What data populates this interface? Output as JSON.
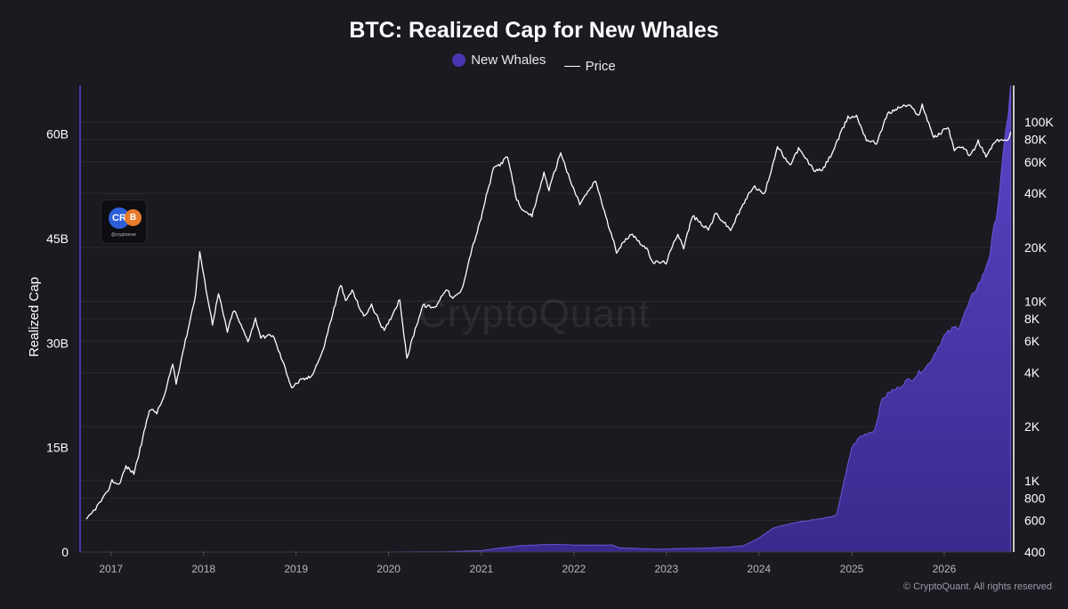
{
  "chart_data": {
    "type": "area",
    "title": "BTC: Realized Cap for New Whales",
    "ylabel": "Realized Cap",
    "y2label": "",
    "xlim": [
      "2016-09-01",
      "2026-09-25"
    ],
    "ylim": [
      0,
      67000000000
    ],
    "y2lim": [
      400,
      160000
    ],
    "y2scale": "log",
    "grid": "horizontal",
    "legend_placement": "top-center",
    "x_ticks": [
      "2017",
      "2018",
      "2019",
      "2020",
      "2021",
      "2022",
      "2023",
      "2024",
      "2025",
      "2026"
    ],
    "y_ticks": [
      {
        "value": 0,
        "label": "0"
      },
      {
        "value": 15000000000,
        "label": "15B"
      },
      {
        "value": 30000000000,
        "label": "30B"
      },
      {
        "value": 45000000000,
        "label": "45B"
      },
      {
        "value": 60000000000,
        "label": "60B"
      }
    ],
    "y2_ticks": [
      {
        "value": 400,
        "label": "400"
      },
      {
        "value": 600,
        "label": "600"
      },
      {
        "value": 800,
        "label": "800"
      },
      {
        "value": 1000,
        "label": "1K"
      },
      {
        "value": 2000,
        "label": "2K"
      },
      {
        "value": 4000,
        "label": "4K"
      },
      {
        "value": 6000,
        "label": "6K"
      },
      {
        "value": 8000,
        "label": "8K"
      },
      {
        "value": 10000,
        "label": "10K"
      },
      {
        "value": 20000,
        "label": "20K"
      },
      {
        "value": 40000,
        "label": "40K"
      },
      {
        "value": 60000,
        "label": "60K"
      },
      {
        "value": 80000,
        "label": "80K"
      },
      {
        "value": 100000,
        "label": "100K"
      }
    ],
    "series": [
      {
        "name": "New Whales",
        "axis": "left",
        "color": "#4a35b0",
        "points": [
          [
            "2016-09-25",
            0
          ],
          [
            "2018-01-01",
            0
          ],
          [
            "2019-01-01",
            0
          ],
          [
            "2020-01-01",
            0
          ],
          [
            "2020-09-01",
            50000000
          ],
          [
            "2021-01-01",
            200000000
          ],
          [
            "2021-03-01",
            500000000
          ],
          [
            "2021-06-01",
            900000000
          ],
          [
            "2021-10-01",
            1100000000
          ],
          [
            "2022-01-01",
            1000000000
          ],
          [
            "2022-04-01",
            1000000000
          ],
          [
            "2022-06-01",
            1000000000
          ],
          [
            "2022-07-01",
            600000000
          ],
          [
            "2022-12-01",
            400000000
          ],
          [
            "2023-03-01",
            500000000
          ],
          [
            "2023-06-01",
            550000000
          ],
          [
            "2023-09-01",
            700000000
          ],
          [
            "2023-11-01",
            900000000
          ],
          [
            "2024-01-01",
            2000000000
          ],
          [
            "2024-03-01",
            3500000000
          ],
          [
            "2024-06-01",
            4300000000
          ],
          [
            "2024-09-01",
            4800000000
          ],
          [
            "2024-11-01",
            5200000000
          ],
          [
            "2024-12-01",
            10000000000
          ],
          [
            "2025-01-01",
            15000000000
          ],
          [
            "2025-02-01",
            16500000000
          ],
          [
            "2025-03-01",
            17000000000
          ],
          [
            "2025-04-01",
            17500000000
          ],
          [
            "2025-05-01",
            22000000000
          ],
          [
            "2025-06-01",
            23000000000
          ],
          [
            "2025-07-01",
            23500000000
          ],
          [
            "2025-08-01",
            24500000000
          ],
          [
            "2025-09-01",
            25000000000
          ],
          [
            "2025-10-01",
            26000000000
          ],
          [
            "2025-11-01",
            27000000000
          ],
          [
            "2025-12-01",
            29000000000
          ],
          [
            "2026-01-01",
            31000000000
          ],
          [
            "2026-02-01",
            32000000000
          ],
          [
            "2026-03-01",
            32500000000
          ],
          [
            "2026-04-01",
            35000000000
          ],
          [
            "2026-05-01",
            37500000000
          ],
          [
            "2026-06-01",
            39500000000
          ],
          [
            "2026-07-01",
            43000000000
          ],
          [
            "2026-08-01",
            50000000000
          ],
          [
            "2026-08-25",
            58000000000
          ],
          [
            "2026-09-10",
            63000000000
          ],
          [
            "2026-09-20",
            67000000000
          ]
        ]
      },
      {
        "name": "Price",
        "axis": "right",
        "color": "#ffffff",
        "points": [
          [
            "2016-09-25",
            600
          ],
          [
            "2016-11-01",
            700
          ],
          [
            "2016-12-15",
            850
          ],
          [
            "2017-01-05",
            1000
          ],
          [
            "2017-02-01",
            950
          ],
          [
            "2017-03-01",
            1200
          ],
          [
            "2017-04-01",
            1100
          ],
          [
            "2017-05-01",
            1600
          ],
          [
            "2017-06-01",
            2500
          ],
          [
            "2017-07-01",
            2400
          ],
          [
            "2017-08-01",
            3000
          ],
          [
            "2017-09-01",
            4500
          ],
          [
            "2017-09-15",
            3500
          ],
          [
            "2017-10-01",
            4500
          ],
          [
            "2017-11-01",
            7000
          ],
          [
            "2017-12-01",
            11000
          ],
          [
            "2017-12-17",
            19000
          ],
          [
            "2018-01-01",
            14000
          ],
          [
            "2018-02-05",
            7500
          ],
          [
            "2018-03-01",
            11000
          ],
          [
            "2018-04-05",
            6800
          ],
          [
            "2018-05-01",
            9000
          ],
          [
            "2018-06-25",
            6000
          ],
          [
            "2018-07-25",
            8000
          ],
          [
            "2018-08-15",
            6300
          ],
          [
            "2018-10-01",
            6500
          ],
          [
            "2018-11-20",
            4200
          ],
          [
            "2018-12-15",
            3300
          ],
          [
            "2019-01-15",
            3600
          ],
          [
            "2019-03-01",
            3800
          ],
          [
            "2019-04-15",
            5200
          ],
          [
            "2019-05-20",
            8000
          ],
          [
            "2019-06-26",
            12500
          ],
          [
            "2019-07-15",
            10000
          ],
          [
            "2019-08-10",
            11500
          ],
          [
            "2019-09-25",
            8200
          ],
          [
            "2019-10-26",
            9500
          ],
          [
            "2019-12-15",
            6800
          ],
          [
            "2020-02-14",
            10300
          ],
          [
            "2020-03-13",
            4800
          ],
          [
            "2020-04-15",
            7000
          ],
          [
            "2020-05-15",
            9500
          ],
          [
            "2020-07-01",
            9200
          ],
          [
            "2020-08-15",
            11800
          ],
          [
            "2020-09-10",
            10300
          ],
          [
            "2020-10-15",
            11500
          ],
          [
            "2020-11-20",
            18500
          ],
          [
            "2020-12-31",
            29000
          ],
          [
            "2021-01-15",
            36000
          ],
          [
            "2021-02-20",
            56000
          ],
          [
            "2021-03-15",
            58000
          ],
          [
            "2021-04-14",
            64000
          ],
          [
            "2021-05-20",
            37000
          ],
          [
            "2021-06-22",
            31000
          ],
          [
            "2021-07-20",
            30000
          ],
          [
            "2021-09-05",
            52000
          ],
          [
            "2021-09-25",
            42000
          ],
          [
            "2021-11-10",
            68000
          ],
          [
            "2021-12-15",
            48000
          ],
          [
            "2022-01-24",
            35000
          ],
          [
            "2022-03-28",
            47000
          ],
          [
            "2022-05-12",
            28000
          ],
          [
            "2022-06-18",
            19000
          ],
          [
            "2022-08-15",
            24000
          ],
          [
            "2022-10-15",
            19500
          ],
          [
            "2022-11-10",
            16500
          ],
          [
            "2022-12-31",
            16500
          ],
          [
            "2023-02-15",
            24000
          ],
          [
            "2023-03-10",
            20000
          ],
          [
            "2023-04-14",
            30000
          ],
          [
            "2023-06-15",
            25000
          ],
          [
            "2023-07-15",
            31000
          ],
          [
            "2023-09-11",
            25000
          ],
          [
            "2023-10-30",
            34500
          ],
          [
            "2023-12-10",
            44000
          ],
          [
            "2024-01-23",
            39500
          ],
          [
            "2024-03-14",
            73000
          ],
          [
            "2024-05-01",
            57000
          ],
          [
            "2024-06-05",
            71000
          ],
          [
            "2024-08-05",
            54000
          ],
          [
            "2024-09-06",
            53500
          ],
          [
            "2024-10-15",
            67000
          ],
          [
            "2024-12-17",
            106000
          ],
          [
            "2025-01-20",
            108000
          ],
          [
            "2025-02-28",
            80000
          ],
          [
            "2025-04-08",
            76000
          ],
          [
            "2025-05-22",
            111000
          ],
          [
            "2025-07-14",
            122000
          ],
          [
            "2025-08-14",
            124000
          ],
          [
            "2025-09-25",
            109000
          ],
          [
            "2025-10-06",
            125000
          ],
          [
            "2025-11-21",
            82000
          ],
          [
            "2025-12-15",
            86000
          ],
          [
            "2026-01-15",
            95000
          ],
          [
            "2026-02-10",
            70000
          ],
          [
            "2026-03-15",
            72000
          ],
          [
            "2026-04-15",
            65000
          ],
          [
            "2026-05-15",
            78000
          ],
          [
            "2026-06-15",
            64000
          ],
          [
            "2026-07-15",
            76000
          ],
          [
            "2026-08-10",
            80000
          ],
          [
            "2026-09-05",
            78000
          ],
          [
            "2026-09-20",
            88000
          ]
        ]
      }
    ]
  },
  "watermark": "CryptoQuant",
  "copyright": "© CryptoQuant. All rights reserved",
  "logo": {
    "handle": "@cryptoever",
    "mark_left": "CR",
    "mark_right": "B"
  }
}
